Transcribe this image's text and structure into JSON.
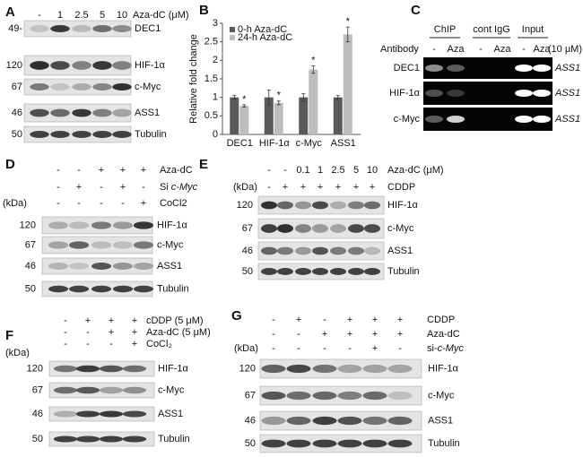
{
  "panel_a": {
    "label": "A",
    "conditions": [
      {
        "name": "Aza-dC (μM)",
        "marks": [
          "-",
          "1",
          "2.5",
          "5",
          "10"
        ]
      }
    ],
    "blots": [
      {
        "mw": "49-",
        "protein": "DEC1"
      },
      {
        "mw": "120",
        "protein": "HIF-1α"
      },
      {
        "mw": "67",
        "protein": "c-Myc"
      },
      {
        "mw": "46",
        "protein": "ASS1"
      },
      {
        "mw": "50",
        "protein": "Tubulin"
      }
    ]
  },
  "chart_data": {
    "type": "bar",
    "label": "B",
    "y_label": "Relative fold change",
    "categories": [
      "DEC1",
      "HIF-1α",
      "c-Myc",
      "ASS1"
    ],
    "series": [
      {
        "name": "0-h Aza-dC",
        "color": "#5a5a5a",
        "values": [
          1,
          1,
          1,
          1
        ],
        "errors": [
          0.05,
          0.2,
          0.1,
          0.05
        ]
      },
      {
        "name": "24-h Aza-dC",
        "color": "#bdbdbd",
        "values": [
          0.77,
          0.85,
          1.75,
          2.7
        ],
        "errors": [
          0.03,
          0.05,
          0.1,
          0.2
        ]
      }
    ],
    "significance": [
      "*",
      "*",
      "*",
      "*"
    ],
    "ylim": [
      0,
      3
    ],
    "yticks": [
      0,
      0.5,
      1,
      1.5,
      2,
      2.5,
      3
    ],
    "legend": "top-left"
  },
  "panel_c": {
    "label": "C",
    "groups": [
      "ChIP",
      "cont IgG",
      "Input"
    ],
    "antibody_label": "Antibody",
    "lanes": [
      "-",
      "Aza",
      "-",
      "Aza",
      "-",
      "Aza"
    ],
    "dose": "(10 μM)",
    "rows": [
      {
        "antibody": "DEC1",
        "gene": "ASS1"
      },
      {
        "antibody": "HIF-1α",
        "gene": "ASS1"
      },
      {
        "antibody": "c-Myc",
        "gene": "ASS1"
      }
    ]
  },
  "panel_d": {
    "label": "D",
    "kda": "(kDa)",
    "conditions": [
      {
        "name": "Aza-dC",
        "marks": [
          "-",
          "-",
          "+",
          "+",
          "+"
        ]
      },
      {
        "name": {
          "prefix": "Si",
          "gene": "c-Myc"
        },
        "marks": [
          "-",
          "+",
          "-",
          "+",
          "-"
        ]
      },
      {
        "name": "CoCl2",
        "marks": [
          "-",
          "-",
          "-",
          "-",
          "+"
        ]
      }
    ],
    "blots": [
      {
        "mw": "120",
        "protein": "HIF-1α"
      },
      {
        "mw": "67",
        "protein": "c-Myc"
      },
      {
        "mw": "46",
        "protein": "ASS1"
      },
      {
        "mw": "50",
        "protein": "Tubulin"
      }
    ]
  },
  "panel_e": {
    "label": "E",
    "kda": "(kDa)",
    "conditions": [
      {
        "name": "Aza-dC (μM)",
        "marks": [
          "-",
          "-",
          "0.1",
          "1",
          "2.5",
          "5",
          "10"
        ]
      },
      {
        "name": "CDDP",
        "marks": [
          "-",
          "+",
          "+",
          "+",
          "+",
          "+",
          "+"
        ]
      }
    ],
    "blots": [
      {
        "mw": "120",
        "protein": "HIF-1α"
      },
      {
        "mw": "67",
        "protein": "c-Myc"
      },
      {
        "mw": "46",
        "protein": "ASS1"
      },
      {
        "mw": "50",
        "protein": "Tubulin"
      }
    ]
  },
  "panel_f": {
    "label": "F",
    "kda": "(kDa)",
    "conditions": [
      {
        "name": "cDDP (5 μM)",
        "marks": [
          "-",
          "+",
          "+",
          "+"
        ]
      },
      {
        "name": "Aza-dC (5 μM)",
        "marks": [
          "-",
          "-",
          "+",
          "+"
        ]
      },
      {
        "name": "CoCl₂",
        "marks": [
          "-",
          "-",
          "-",
          "+"
        ]
      }
    ],
    "blots": [
      {
        "mw": "120",
        "protein": "HIF-1α"
      },
      {
        "mw": "67",
        "protein": "c-Myc"
      },
      {
        "mw": "46",
        "protein": "ASS1"
      },
      {
        "mw": "50",
        "protein": "Tubulin"
      }
    ]
  },
  "panel_g": {
    "label": "G",
    "kda": "(kDa)",
    "conditions": [
      {
        "name": "CDDP",
        "marks": [
          "-",
          "+",
          "-",
          "+",
          "+",
          "+"
        ]
      },
      {
        "name": "Aza-dC",
        "marks": [
          "-",
          "-",
          "+",
          "+",
          "+",
          "+"
        ]
      },
      {
        "name": {
          "prefix": "si-",
          "gene": "c-Myc"
        },
        "marks": [
          "-",
          "-",
          "-",
          "-",
          "+",
          "-"
        ]
      }
    ],
    "blots": [
      {
        "mw": "120",
        "protein": "HIF-1α"
      },
      {
        "mw": "67",
        "protein": "c-Myc"
      },
      {
        "mw": "46",
        "protein": "ASS1"
      },
      {
        "mw": "50",
        "protein": "Tubulin"
      }
    ]
  }
}
